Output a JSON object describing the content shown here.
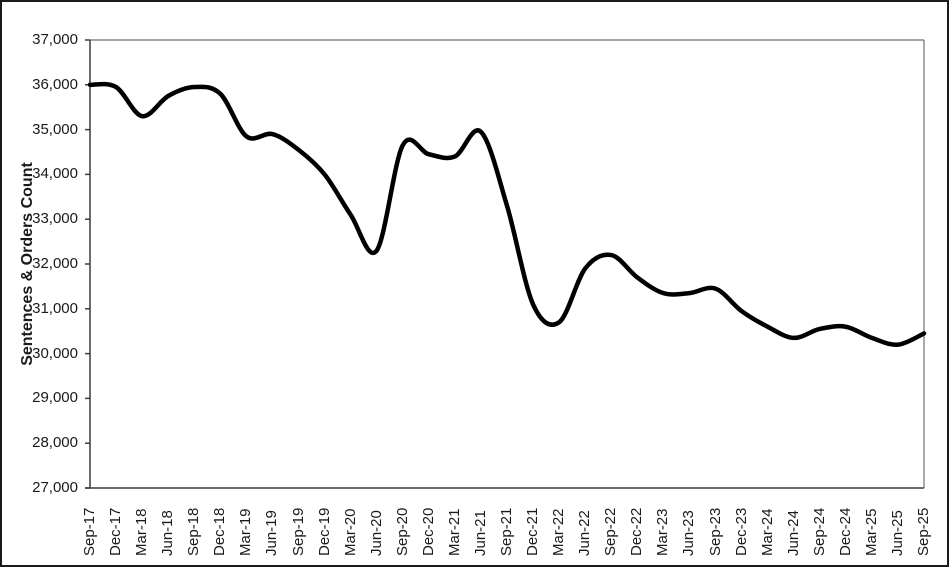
{
  "window": {
    "background": "#ffffff",
    "frame_border_color": "#1a1a1a"
  },
  "colors": {
    "line": "#000000",
    "plot_border": "#868686",
    "axis_line": "#3c3c3c",
    "tick_text": "#1a1a1a"
  },
  "chart_data": {
    "type": "line",
    "title": "",
    "ylabel": "Sentences & Orders Count",
    "xlabel": "",
    "ylim": [
      27000,
      37000
    ],
    "ytick_interval": 1000,
    "ytick_labels": [
      "37,000",
      "36,000",
      "35,000",
      "34,000",
      "33,000",
      "32,000",
      "31,000",
      "30,000",
      "29,000",
      "28,000",
      "27,000"
    ],
    "categories": [
      "Sep-17",
      "Dec-17",
      "Mar-18",
      "Jun-18",
      "Sep-18",
      "Dec-18",
      "Mar-19",
      "Jun-19",
      "Sep-19",
      "Dec-19",
      "Mar-20",
      "Jun-20",
      "Sep-20",
      "Dec-20",
      "Mar-21",
      "Jun-21",
      "Sep-21",
      "Dec-21",
      "Mar-22",
      "Jun-22",
      "Sep-22",
      "Dec-22",
      "Mar-23",
      "Jun-23",
      "Sep-23",
      "Dec-23",
      "Mar-24",
      "Jun-24",
      "Sep-24",
      "Dec-24",
      "Mar-25",
      "Jun-25",
      "Sep-25"
    ],
    "series": [
      {
        "name": "Sentences & Orders Count",
        "color": "#000000",
        "smooth": true,
        "line_width": 4.5,
        "values": [
          36000,
          35950,
          35300,
          35750,
          35950,
          35800,
          34850,
          34900,
          34550,
          34000,
          33100,
          32300,
          34650,
          34450,
          34400,
          34950,
          33300,
          31100,
          30700,
          31900,
          32200,
          31700,
          31350,
          31350,
          31450,
          30950,
          30600,
          30350,
          30550,
          30600,
          30350,
          30200,
          30450
        ]
      }
    ],
    "grid": false,
    "legend": "none"
  }
}
